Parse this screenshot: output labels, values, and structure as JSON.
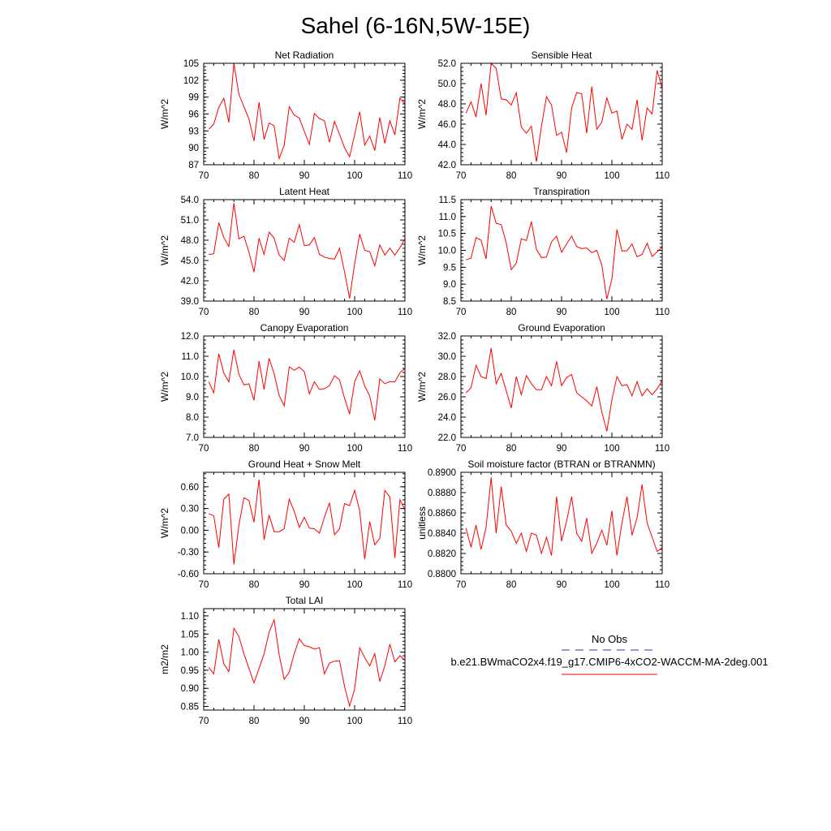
{
  "figure": {
    "title": "Sahel (6-16N,5W-15E)"
  },
  "legend": {
    "entries": [
      {
        "label": "No Obs",
        "color": "#3333aa",
        "dash": "dashed"
      },
      {
        "label": "b.e21.BWmaCO2x4.f19_g17.CMIP6-4xCO2-WACCM-MA-2deg.001",
        "color": "#ff0000",
        "dash": "solid"
      }
    ]
  },
  "chart_data": [
    {
      "type": "line",
      "title": "Net Radiation",
      "ylabel": "W/m^2",
      "xlim": [
        70,
        110
      ],
      "ylim": [
        87,
        105
      ],
      "xticks": [
        "70",
        "80",
        "90",
        "100",
        "110"
      ],
      "yticks": [
        "87",
        "90",
        "93",
        "96",
        "99",
        "102",
        "105"
      ],
      "series": [
        {
          "name": "b.e21.BWmaCO2x4.f19_g17.CMIP6-4xCO2-WACCM-MA-2deg.001",
          "color": "#ff0000",
          "x": [
            71,
            72,
            73,
            74,
            75,
            76,
            77,
            78,
            79,
            80,
            81,
            82,
            83,
            84,
            85,
            86,
            87,
            88,
            89,
            90,
            91,
            92,
            93,
            94,
            95,
            96,
            97,
            98,
            99,
            100,
            101,
            102,
            103,
            104,
            105,
            106,
            107,
            108,
            109,
            110
          ],
          "values": [
            93.3,
            94.2,
            97.2,
            98.8,
            94.5,
            105.0,
            99.5,
            97.3,
            95.1,
            91.2,
            98.1,
            91.5,
            94.4,
            93.9,
            88.1,
            90.5,
            97.3,
            95.8,
            95.3,
            92.9,
            90.6,
            96.1,
            95.2,
            94.8,
            91.0,
            94.7,
            92.4,
            90.0,
            88.4,
            92.3,
            96.4,
            90.5,
            92.1,
            89.5,
            95.4,
            90.8,
            94.8,
            92.3,
            98.8,
            97.8
          ]
        }
      ]
    },
    {
      "type": "line",
      "title": "Sensible Heat",
      "ylabel": "W/m^2",
      "xlim": [
        70,
        110
      ],
      "ylim": [
        42,
        52
      ],
      "xticks": [
        "70",
        "80",
        "90",
        "100",
        "110"
      ],
      "yticks": [
        "42.0",
        "44.0",
        "46.0",
        "48.0",
        "50.0",
        "52.0"
      ],
      "series": [
        {
          "name": "b.e21.BWmaCO2x4.f19_g17.CMIP6-4xCO2-WACCM-MA-2deg.001",
          "color": "#ff0000",
          "x": [
            71,
            72,
            73,
            74,
            75,
            76,
            77,
            78,
            79,
            80,
            81,
            82,
            83,
            84,
            85,
            86,
            87,
            88,
            89,
            90,
            91,
            92,
            93,
            94,
            95,
            96,
            97,
            98,
            99,
            100,
            101,
            102,
            103,
            104,
            105,
            106,
            107,
            108,
            109,
            110
          ],
          "values": [
            47.1,
            48.2,
            46.7,
            50.0,
            46.9,
            52.0,
            51.5,
            48.5,
            48.4,
            47.9,
            49.1,
            45.7,
            45.1,
            45.8,
            42.3,
            45.8,
            48.7,
            47.9,
            44.9,
            45.2,
            43.2,
            47.6,
            49.1,
            49.0,
            45.1,
            49.7,
            45.5,
            46.2,
            48.6,
            47.1,
            47.3,
            44.5,
            46.0,
            45.5,
            48.4,
            44.4,
            47.6,
            47.0,
            51.3,
            49.5
          ]
        }
      ]
    },
    {
      "type": "line",
      "title": "Latent Heat",
      "ylabel": "W/m^2",
      "xlim": [
        70,
        110
      ],
      "ylim": [
        39,
        54
      ],
      "xticks": [
        "70",
        "80",
        "90",
        "100",
        "110"
      ],
      "yticks": [
        "39.0",
        "42.0",
        "45.0",
        "48.0",
        "51.0",
        "54.0"
      ],
      "series": [
        {
          "name": "b.e21.BWmaCO2x4.f19_g17.CMIP6-4xCO2-WACCM-MA-2deg.001",
          "color": "#ff0000",
          "x": [
            71,
            72,
            73,
            74,
            75,
            76,
            77,
            78,
            79,
            80,
            81,
            82,
            83,
            84,
            85,
            86,
            87,
            88,
            89,
            90,
            91,
            92,
            93,
            94,
            95,
            96,
            97,
            98,
            99,
            100,
            101,
            102,
            103,
            104,
            105,
            106,
            107,
            108,
            109,
            110
          ],
          "values": [
            45.9,
            46.0,
            50.6,
            48.4,
            47.1,
            53.5,
            48.2,
            48.6,
            46.2,
            43.3,
            48.3,
            45.9,
            49.2,
            48.3,
            45.8,
            45.0,
            48.3,
            47.7,
            50.3,
            47.2,
            47.3,
            48.4,
            45.9,
            45.5,
            45.3,
            45.2,
            46.8,
            43.3,
            39.4,
            44.5,
            48.9,
            46.5,
            46.3,
            44.2,
            47.3,
            45.8,
            46.8,
            45.8,
            46.9,
            48.2
          ]
        }
      ]
    },
    {
      "type": "line",
      "title": "Transpiration",
      "ylabel": "W/m^2",
      "xlim": [
        70,
        110
      ],
      "ylim": [
        8.5,
        11.5
      ],
      "xticks": [
        "70",
        "80",
        "90",
        "100",
        "110"
      ],
      "yticks": [
        "8.5",
        "9.0",
        "9.5",
        "10.0",
        "10.5",
        "11.0",
        "11.5"
      ],
      "series": [
        {
          "name": "b.e21.BWmaCO2x4.f19_g17.CMIP6-4xCO2-WACCM-MA-2deg.001",
          "color": "#ff0000",
          "x": [
            71,
            72,
            73,
            74,
            75,
            76,
            77,
            78,
            79,
            80,
            81,
            82,
            83,
            84,
            85,
            86,
            87,
            88,
            89,
            90,
            91,
            92,
            93,
            94,
            95,
            96,
            97,
            98,
            99,
            100,
            101,
            102,
            103,
            104,
            105,
            106,
            107,
            108,
            109,
            110
          ],
          "values": [
            9.72,
            9.77,
            10.38,
            10.3,
            9.75,
            11.31,
            10.8,
            10.76,
            10.22,
            9.43,
            9.62,
            10.34,
            10.29,
            10.85,
            10.03,
            9.79,
            9.8,
            10.25,
            10.42,
            9.94,
            10.19,
            10.42,
            10.11,
            10.05,
            10.07,
            9.93,
            10.0,
            9.56,
            8.56,
            9.15,
            10.62,
            9.98,
            9.99,
            10.19,
            9.81,
            9.88,
            10.21,
            9.82,
            9.96,
            10.1
          ]
        }
      ]
    },
    {
      "type": "line",
      "title": "Canopy Evaporation",
      "ylabel": "W/m^2",
      "xlim": [
        70,
        110
      ],
      "ylim": [
        7,
        12
      ],
      "xticks": [
        "70",
        "80",
        "90",
        "100",
        "110"
      ],
      "yticks": [
        "7.0",
        "8.0",
        "9.0",
        "10.0",
        "11.0",
        "12.0"
      ],
      "series": [
        {
          "name": "b.e21.BWmaCO2x4.f19_g17.CMIP6-4xCO2-WACCM-MA-2deg.001",
          "color": "#ff0000",
          "x": [
            71,
            72,
            73,
            74,
            75,
            76,
            77,
            78,
            79,
            80,
            81,
            82,
            83,
            84,
            85,
            86,
            87,
            88,
            89,
            90,
            91,
            92,
            93,
            94,
            95,
            96,
            97,
            98,
            99,
            100,
            101,
            102,
            103,
            104,
            105,
            106,
            107,
            108,
            109,
            110
          ],
          "values": [
            9.75,
            9.2,
            11.12,
            10.17,
            9.74,
            11.32,
            10.11,
            9.59,
            9.64,
            8.83,
            10.77,
            9.36,
            10.9,
            10.14,
            9.06,
            8.56,
            10.48,
            10.31,
            10.47,
            10.24,
            9.15,
            9.75,
            9.36,
            9.4,
            9.56,
            10.04,
            9.84,
            8.93,
            8.15,
            9.75,
            10.29,
            9.54,
            9.04,
            7.84,
            9.89,
            9.65,
            9.75,
            9.74,
            10.18,
            10.4
          ]
        }
      ]
    },
    {
      "type": "line",
      "title": "Ground Evaporation",
      "ylabel": "W/m^2",
      "xlim": [
        70,
        110
      ],
      "ylim": [
        22,
        32
      ],
      "xticks": [
        "70",
        "80",
        "90",
        "100",
        "110"
      ],
      "yticks": [
        "22.0",
        "24.0",
        "26.0",
        "28.0",
        "30.0",
        "32.0"
      ],
      "series": [
        {
          "name": "b.e21.BWmaCO2x4.f19_g17.CMIP6-4xCO2-WACCM-MA-2deg.001",
          "color": "#ff0000",
          "x": [
            71,
            72,
            73,
            74,
            75,
            76,
            77,
            78,
            79,
            80,
            81,
            82,
            83,
            84,
            85,
            86,
            87,
            88,
            89,
            90,
            91,
            92,
            93,
            94,
            95,
            96,
            97,
            98,
            99,
            100,
            101,
            102,
            103,
            104,
            105,
            106,
            107,
            108,
            109,
            110
          ],
          "values": [
            26.4,
            26.9,
            29.1,
            28.0,
            27.8,
            30.8,
            27.3,
            28.3,
            26.6,
            24.9,
            28.0,
            26.2,
            28.1,
            27.3,
            26.7,
            26.7,
            28.0,
            27.1,
            29.5,
            27.1,
            27.9,
            28.2,
            26.4,
            26.0,
            25.6,
            25.1,
            27.0,
            24.5,
            22.6,
            25.7,
            28.0,
            27.1,
            27.2,
            26.1,
            27.5,
            26.1,
            26.8,
            26.2,
            26.8,
            27.6
          ]
        }
      ]
    },
    {
      "type": "line",
      "title": "Ground Heat + Snow Melt",
      "ylabel": "W/m^2",
      "xlim": [
        70,
        110
      ],
      "ylim": [
        -0.6,
        0.8
      ],
      "xticks": [
        "70",
        "80",
        "90",
        "100",
        "110"
      ],
      "yticks": [
        "-0.60",
        "-0.30",
        "0.00",
        "0.30",
        "0.60"
      ],
      "series": [
        {
          "name": "b.e21.BWmaCO2x4.f19_g17.CMIP6-4xCO2-WACCM-MA-2deg.001",
          "color": "#ff0000",
          "x": [
            71,
            72,
            73,
            74,
            75,
            76,
            77,
            78,
            79,
            80,
            81,
            82,
            83,
            84,
            85,
            86,
            87,
            88,
            89,
            90,
            91,
            92,
            93,
            94,
            95,
            96,
            97,
            98,
            99,
            100,
            101,
            102,
            103,
            104,
            105,
            106,
            107,
            108,
            109,
            110
          ],
          "values": [
            0.23,
            0.2,
            -0.24,
            0.43,
            0.5,
            -0.47,
            0.07,
            0.45,
            0.41,
            0.11,
            0.7,
            -0.13,
            0.21,
            -0.02,
            -0.02,
            0.02,
            0.43,
            0.26,
            0.04,
            0.18,
            0.03,
            0.02,
            -0.04,
            0.18,
            0.38,
            -0.06,
            0.02,
            0.37,
            0.34,
            0.55,
            0.27,
            -0.4,
            0.12,
            -0.2,
            -0.11,
            0.55,
            0.46,
            -0.38,
            0.42,
            0.28
          ]
        }
      ]
    },
    {
      "type": "line",
      "title": "Soil moisture factor (BTRAN or BTRANMN)",
      "ylabel": "unitless",
      "xlim": [
        70,
        110
      ],
      "ylim": [
        0.88,
        0.89
      ],
      "xticks": [
        "70",
        "80",
        "90",
        "100",
        "110"
      ],
      "yticks": [
        "0.8800",
        "0.8820",
        "0.8840",
        "0.8860",
        "0.8880",
        "0.8900"
      ],
      "series": [
        {
          "name": "b.e21.BWmaCO2x4.f19_g17.CMIP6-4xCO2-WACCM-MA-2deg.001",
          "color": "#ff0000",
          "x": [
            71,
            72,
            73,
            74,
            75,
            76,
            77,
            78,
            79,
            80,
            81,
            82,
            83,
            84,
            85,
            86,
            87,
            88,
            89,
            90,
            91,
            92,
            93,
            94,
            95,
            96,
            97,
            98,
            99,
            100,
            101,
            102,
            103,
            104,
            105,
            106,
            107,
            108,
            109,
            110
          ],
          "values": [
            0.8845,
            0.8826,
            0.8848,
            0.8824,
            0.8846,
            0.8895,
            0.884,
            0.8886,
            0.8848,
            0.8842,
            0.883,
            0.884,
            0.8822,
            0.884,
            0.8838,
            0.882,
            0.8836,
            0.8818,
            0.8876,
            0.8832,
            0.8852,
            0.8876,
            0.884,
            0.8832,
            0.8855,
            0.882,
            0.883,
            0.8843,
            0.8828,
            0.8862,
            0.8818,
            0.885,
            0.8876,
            0.8838,
            0.8855,
            0.8888,
            0.885,
            0.8836,
            0.8822,
            0.8826
          ]
        }
      ]
    },
    {
      "type": "line",
      "title": "Total LAI",
      "ylabel": "m2/m2",
      "xlim": [
        70,
        110
      ],
      "ylim": [
        0.84,
        1.12
      ],
      "xticks": [
        "70",
        "80",
        "90",
        "100",
        "110"
      ],
      "yticks": [
        "0.85",
        "0.90",
        "0.95",
        "1.00",
        "1.05",
        "1.10"
      ],
      "series": [
        {
          "name": "b.e21.BWmaCO2x4.f19_g17.CMIP6-4xCO2-WACCM-MA-2deg.001",
          "color": "#ff0000",
          "x": [
            71,
            72,
            73,
            74,
            75,
            76,
            77,
            78,
            79,
            80,
            81,
            82,
            83,
            84,
            85,
            86,
            87,
            88,
            89,
            90,
            91,
            92,
            93,
            94,
            95,
            96,
            97,
            98,
            99,
            100,
            101,
            102,
            103,
            104,
            105,
            106,
            107,
            108,
            109,
            110
          ],
          "values": [
            0.958,
            0.94,
            1.035,
            0.968,
            0.946,
            1.066,
            1.043,
            0.995,
            0.955,
            0.915,
            0.955,
            0.995,
            1.055,
            1.089,
            0.993,
            0.925,
            0.945,
            0.996,
            1.037,
            1.018,
            1.015,
            1.008,
            1.012,
            0.94,
            0.97,
            0.975,
            0.976,
            0.905,
            0.851,
            0.898,
            1.012,
            0.985,
            0.962,
            0.996,
            0.919,
            0.962,
            1.022,
            0.973,
            0.99,
            0.978
          ]
        }
      ]
    }
  ]
}
